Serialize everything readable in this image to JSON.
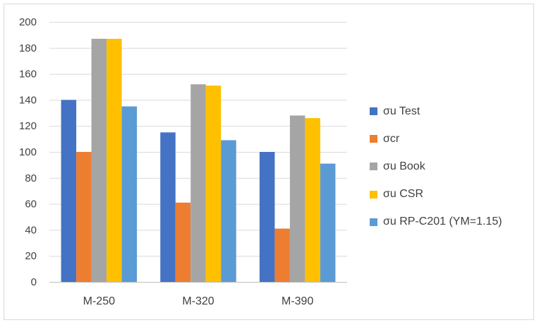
{
  "chart_data": {
    "type": "bar",
    "categories": [
      "M-250",
      "M-320",
      "M-390"
    ],
    "series": [
      {
        "name": "σu Test",
        "color": "#4472c4",
        "values": [
          140,
          115,
          100
        ]
      },
      {
        "name": "σcr",
        "color": "#ed7d31",
        "values": [
          100,
          61,
          41
        ]
      },
      {
        "name": "σu Book",
        "color": "#a5a5a5",
        "values": [
          187,
          152,
          128
        ]
      },
      {
        "name": "σu CSR",
        "color": "#ffc000",
        "values": [
          187,
          151,
          126
        ]
      },
      {
        "name": "σu RP-C201 (YM=1.15)",
        "color": "#5b9bd5",
        "values": [
          135,
          109,
          91
        ]
      }
    ],
    "ylim": [
      0,
      200
    ],
    "yticks": [
      0,
      20,
      40,
      60,
      80,
      100,
      120,
      140,
      160,
      180,
      200
    ],
    "grid": true,
    "legend_position": "right"
  }
}
